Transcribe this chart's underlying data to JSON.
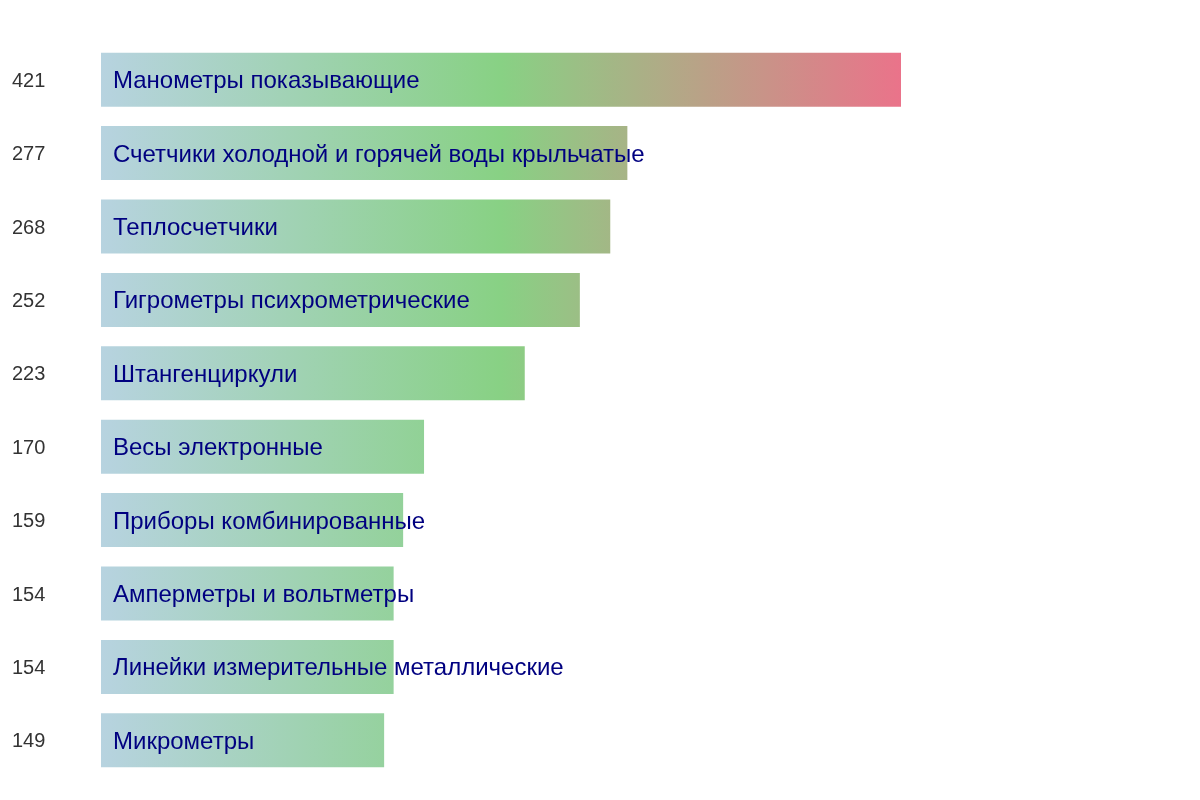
{
  "chart_data": {
    "type": "bar",
    "orientation": "horizontal",
    "categories": [
      "Манометры показывающие",
      "Счетчики холодной и горячей воды крыльчатые",
      "Теплосчетчики",
      "Гигрометры психрометрические",
      "Штангенциркули",
      "Весы электронные",
      "Приборы комбинированные",
      "Амперметры и вольтметры",
      "Линейки измерительные металлические",
      "Микрометры"
    ],
    "values": [
      421,
      277,
      268,
      252,
      223,
      170,
      159,
      154,
      154,
      149
    ],
    "xlim": [
      0,
      421
    ],
    "data_labels": true
  }
}
